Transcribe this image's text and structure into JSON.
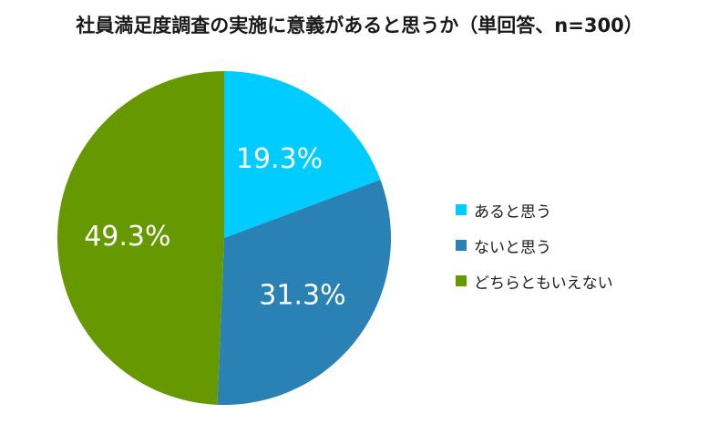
{
  "chart_data": {
    "type": "pie",
    "title": "社員満足度調査の実施に意義があると思うか（単回答、n=300）",
    "categories": [
      "あると思う",
      "ないと思う",
      "どちらともいえない"
    ],
    "values": [
      19.3,
      31.3,
      49.3
    ],
    "labels": [
      "19.3%",
      "31.3%",
      "49.3%"
    ],
    "colors": [
      "#00ccff",
      "#2a82b4",
      "#669900"
    ],
    "legend_position": "right",
    "start_angle": "top, clockwise"
  }
}
